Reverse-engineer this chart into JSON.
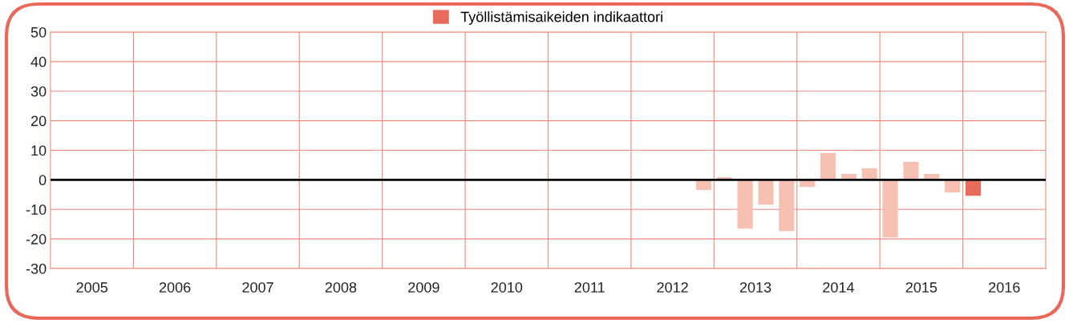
{
  "chart_data": {
    "type": "bar",
    "x": [
      2012.875,
      2013.125,
      2013.375,
      2013.625,
      2013.875,
      2014.125,
      2014.375,
      2014.625,
      2014.875,
      2015.125,
      2015.375,
      2015.625,
      2015.875,
      2016.125
    ],
    "series": [
      {
        "name": "Työllistämisaikeiden indikaattori",
        "color": "#e96b5c",
        "colors": [
          "#f6c1b2",
          "#f6c1b2",
          "#f6c1b2",
          "#f6c1b2",
          "#f6c1b2",
          "#f6c1b2",
          "#f6c1b2",
          "#f6c1b2",
          "#f6c1b2",
          "#f6c1b2",
          "#f6c1b2",
          "#f6c1b2",
          "#f6c1b2",
          "#e96b5c"
        ],
        "values": [
          -3.4,
          0.9,
          -16.5,
          -8.4,
          -17.4,
          -2.4,
          9.1,
          2.0,
          3.9,
          -19.5,
          6.1,
          2.0,
          -4.3,
          -5.4
        ]
      }
    ],
    "xlim": [
      2005,
      2017
    ],
    "xticks": [
      {
        "value": 2005.5,
        "label": "2005"
      },
      {
        "value": 2006,
        "label": null
      },
      {
        "value": 2006.5,
        "label": "2006"
      },
      {
        "value": 2007,
        "label": null
      },
      {
        "value": 2007.5,
        "label": "2007"
      },
      {
        "value": 2008,
        "label": null
      },
      {
        "value": 2008.5,
        "label": "2008"
      },
      {
        "value": 2009,
        "label": null
      },
      {
        "value": 2009.5,
        "label": "2009"
      },
      {
        "value": 2010,
        "label": null
      },
      {
        "value": 2010.5,
        "label": "2010"
      },
      {
        "value": 2011,
        "label": null
      },
      {
        "value": 2011.5,
        "label": "2011"
      },
      {
        "value": 2012,
        "label": null
      },
      {
        "value": 2012.5,
        "label": "2012"
      },
      {
        "value": 2013,
        "label": null
      },
      {
        "value": 2013.5,
        "label": "2013"
      },
      {
        "value": 2014,
        "label": null
      },
      {
        "value": 2014.5,
        "label": "2014"
      },
      {
        "value": 2015,
        "label": null
      },
      {
        "value": 2015.5,
        "label": "2015"
      },
      {
        "value": 2016,
        "label": null
      },
      {
        "value": 2016.5,
        "label": "2016"
      }
    ],
    "ylim": [
      -30,
      50
    ],
    "yticks": [
      -30,
      -20,
      -10,
      0,
      10,
      20,
      30,
      40,
      50
    ],
    "ref_lines": [
      {
        "axis": "y",
        "value": 0,
        "color": "#000000"
      }
    ],
    "grid": true,
    "legend": "top"
  }
}
